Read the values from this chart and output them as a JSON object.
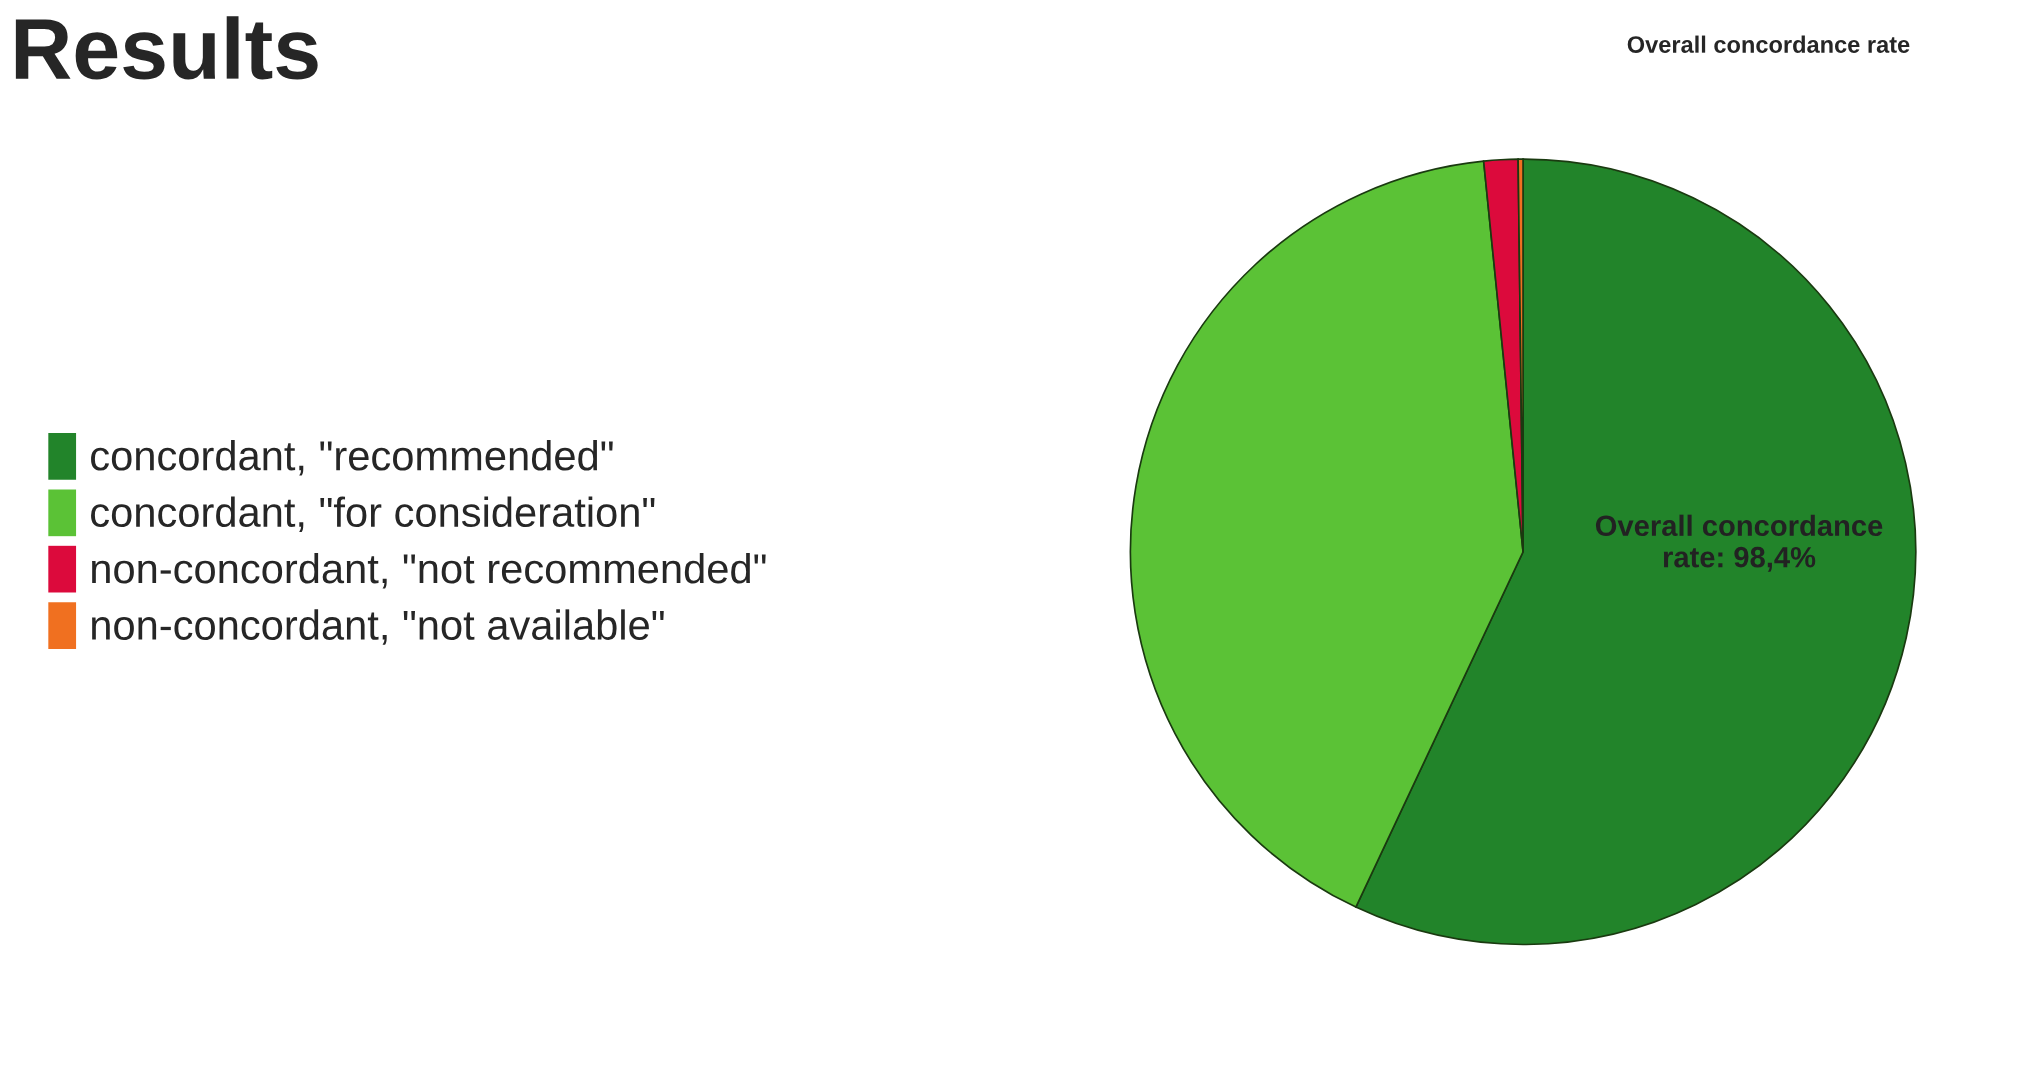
{
  "chart_data": {
    "type": "pie",
    "title": "Results",
    "subtitle": "Overall concordance rate",
    "categories": [
      "concordant, \"recommended\"",
      "concordant, \"for consideration\"",
      "non-concordant, \"not recommended\"",
      "non-concordant, \"not available\""
    ],
    "values": [
      57.0,
      41.4,
      1.4,
      0.2
    ],
    "colors": [
      "#22842a",
      "#5bc236",
      "#dc0a3c",
      "#f07020"
    ],
    "annotations": [
      "Overall concordance\nrate: 98,4%"
    ],
    "legend": "left"
  }
}
